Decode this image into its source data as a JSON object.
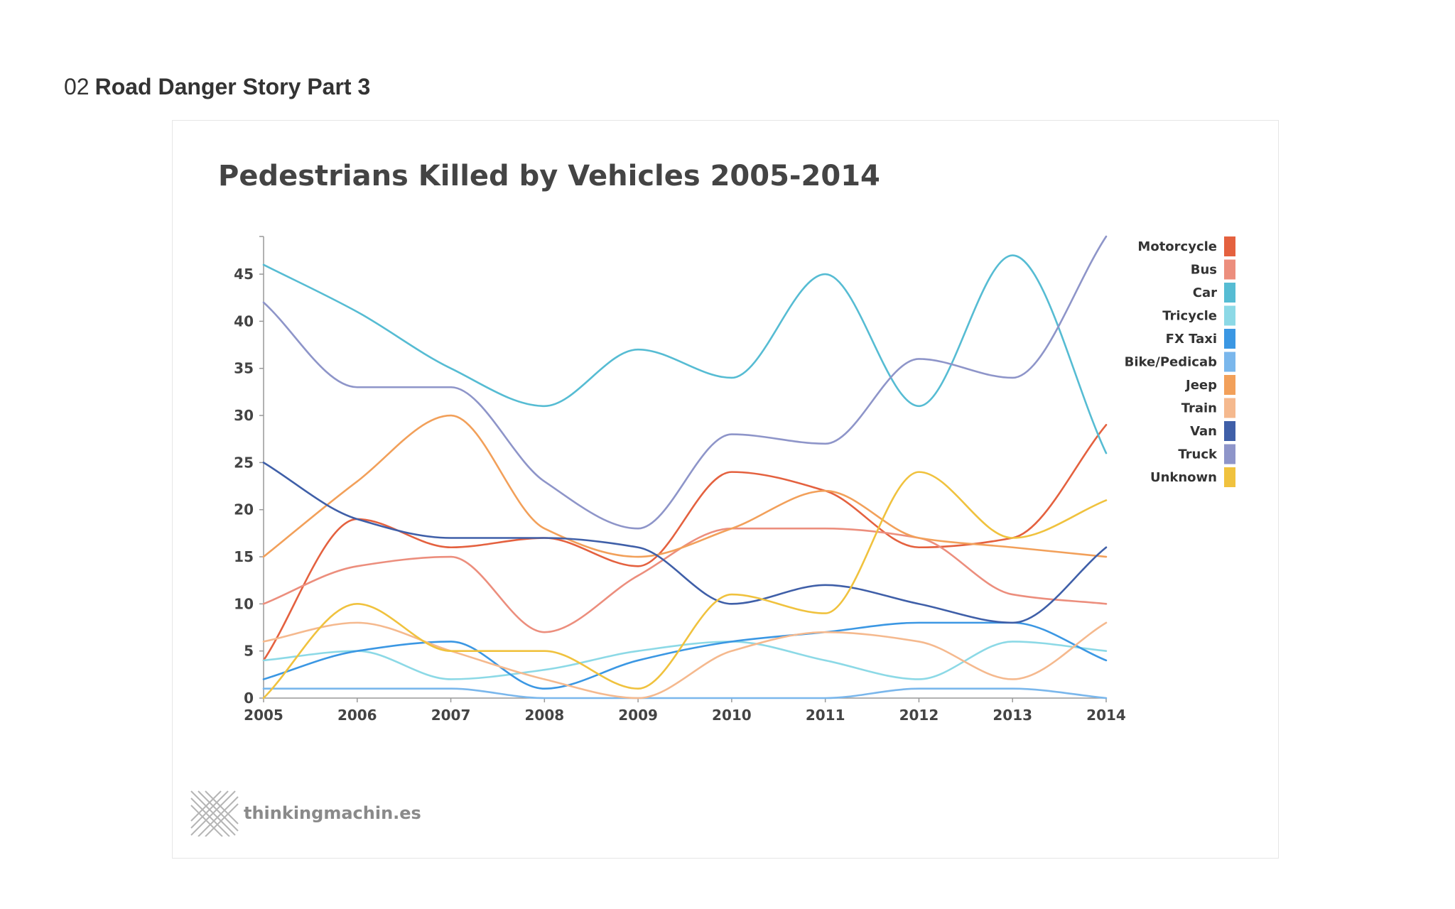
{
  "page": {
    "number": "02",
    "title": "Road Danger Story Part 3"
  },
  "branding": {
    "name": "thinkingmachin.es",
    "icon": "crosshatch-logo-icon"
  },
  "chart_data": {
    "type": "line",
    "title": "Pedestrians Killed by Vehicles 2005-2014",
    "xlabel": "",
    "ylabel": "",
    "x": [
      2005,
      2006,
      2007,
      2008,
      2009,
      2010,
      2011,
      2012,
      2013,
      2014
    ],
    "x_tick_labels": [
      "2005",
      "2006",
      "2007",
      "2008",
      "2009",
      "2010",
      "2011",
      "2012",
      "2013",
      "2014"
    ],
    "y_ticks": [
      0,
      5,
      10,
      15,
      20,
      25,
      30,
      35,
      40,
      45
    ],
    "y_tick_labels": [
      "0",
      "5",
      "10",
      "15",
      "20",
      "25",
      "30",
      "35",
      "40",
      "45"
    ],
    "ylim": [
      0,
      49
    ],
    "xlim": [
      2005,
      2014
    ],
    "grid": false,
    "legend_position": "right",
    "series": [
      {
        "name": "Motorcycle",
        "color": "#e4613f",
        "values": [
          4,
          19,
          16,
          17,
          14,
          24,
          22,
          16,
          17,
          29
        ]
      },
      {
        "name": "Bus",
        "color": "#ec8e7d",
        "values": [
          10,
          14,
          15,
          7,
          13,
          18,
          18,
          17,
          11,
          10
        ]
      },
      {
        "name": "Car",
        "color": "#56bcd3",
        "values": [
          46,
          41,
          35,
          31,
          37,
          34,
          45,
          31,
          47,
          26
        ]
      },
      {
        "name": "Tricycle",
        "color": "#8cd9e6",
        "values": [
          4,
          5,
          2,
          3,
          5,
          6,
          4,
          2,
          6,
          5
        ]
      },
      {
        "name": "FX Taxi",
        "color": "#3b97e3",
        "values": [
          2,
          5,
          6,
          1,
          4,
          6,
          7,
          8,
          8,
          4
        ]
      },
      {
        "name": "Bike/Pedicab",
        "color": "#7ab7ec",
        "values": [
          1,
          1,
          1,
          0,
          0,
          0,
          0,
          1,
          1,
          0
        ]
      },
      {
        "name": "Jeep",
        "color": "#f2a05a",
        "values": [
          15,
          23,
          30,
          18,
          15,
          18,
          22,
          17,
          16,
          15
        ]
      },
      {
        "name": "Train",
        "color": "#f5b98e",
        "values": [
          6,
          8,
          5,
          2,
          0,
          5,
          7,
          6,
          2,
          8
        ]
      },
      {
        "name": "Van",
        "color": "#3f5fa8",
        "values": [
          25,
          19,
          17,
          17,
          16,
          10,
          12,
          10,
          8,
          16
        ]
      },
      {
        "name": "Truck",
        "color": "#8e95c9",
        "values": [
          42,
          33,
          33,
          23,
          18,
          28,
          27,
          36,
          34,
          49
        ]
      },
      {
        "name": "Unknown",
        "color": "#f0c23e",
        "values": [
          0,
          10,
          5,
          5,
          1,
          11,
          9,
          24,
          17,
          21
        ]
      }
    ]
  }
}
